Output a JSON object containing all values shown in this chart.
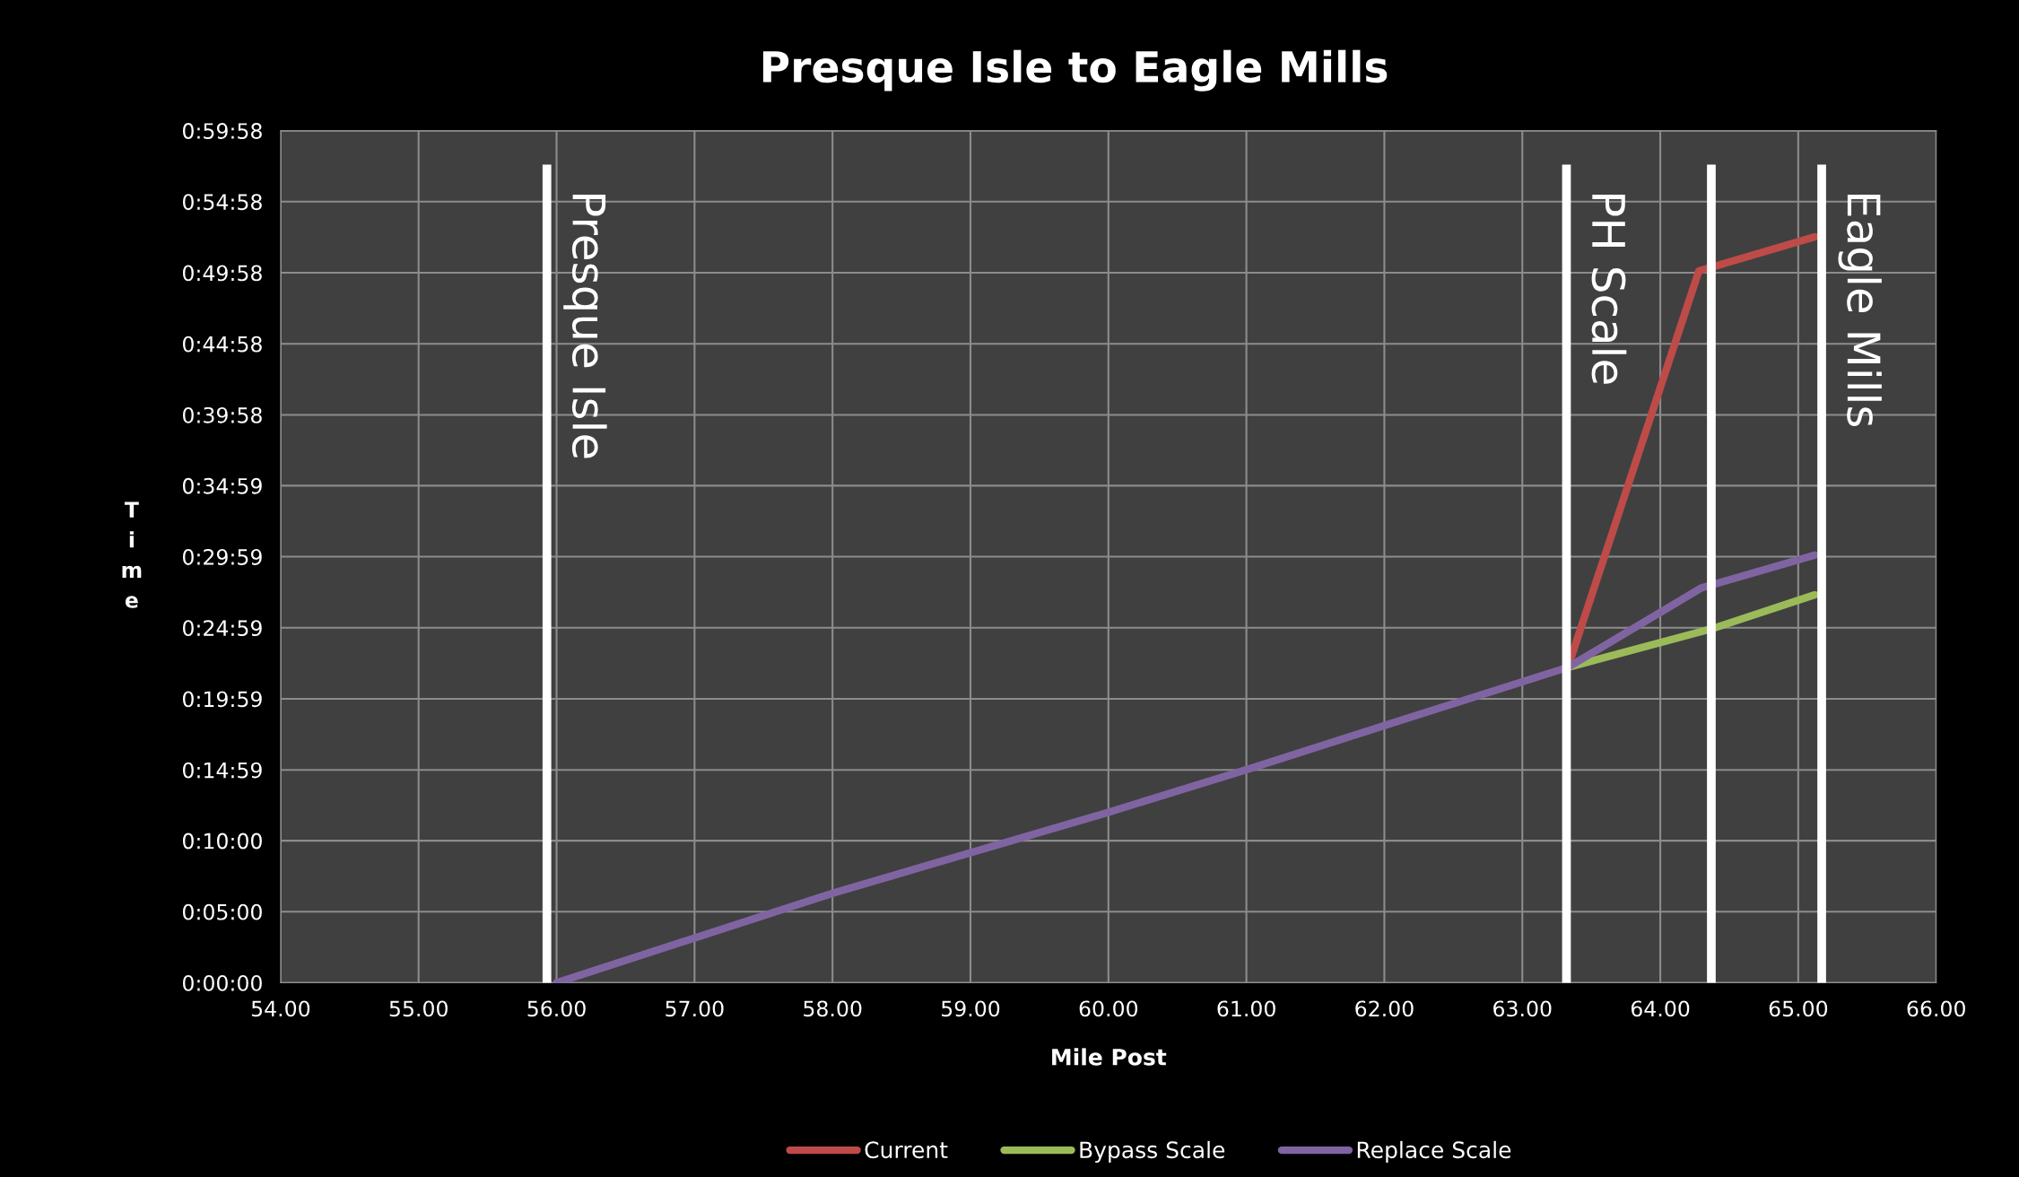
{
  "chart_data": {
    "type": "line",
    "title": "Presque Isle to Eagle Mills",
    "xlabel": "Mile Post",
    "ylabel": "Time",
    "xlim": [
      54,
      66
    ],
    "xticks": [
      {
        "value": 54,
        "label": "54.00"
      },
      {
        "value": 55,
        "label": "55.00"
      },
      {
        "value": 56,
        "label": "56.00"
      },
      {
        "value": 57,
        "label": "57.00"
      },
      {
        "value": 58,
        "label": "58.00"
      },
      {
        "value": 59,
        "label": "59.00"
      },
      {
        "value": 60,
        "label": "60.00"
      },
      {
        "value": 61,
        "label": "61.00"
      },
      {
        "value": 62,
        "label": "62.00"
      },
      {
        "value": 63,
        "label": "63.00"
      },
      {
        "value": 64,
        "label": "64.00"
      },
      {
        "value": 65,
        "label": "65.00"
      },
      {
        "value": 66,
        "label": "66.00"
      }
    ],
    "ylim": [
      0,
      59.9667
    ],
    "yticks": [
      {
        "value": 0,
        "label": "0:00:00"
      },
      {
        "value": 5,
        "label": "0:05:00"
      },
      {
        "value": 10,
        "label": "0:10:00"
      },
      {
        "value": 14.9833,
        "label": "0:14:59"
      },
      {
        "value": 19.9833,
        "label": "0:19:59"
      },
      {
        "value": 24.9833,
        "label": "0:24:59"
      },
      {
        "value": 29.9833,
        "label": "0:29:59"
      },
      {
        "value": 34.9833,
        "label": "0:34:59"
      },
      {
        "value": 39.9667,
        "label": "0:39:58"
      },
      {
        "value": 44.9667,
        "label": "0:44:58"
      },
      {
        "value": 49.9667,
        "label": "0:49:58"
      },
      {
        "value": 54.9667,
        "label": "0:54:58"
      },
      {
        "value": 59.9667,
        "label": "0:59:58"
      }
    ],
    "grid": true,
    "legend": "bottom",
    "marker": "none",
    "line_style": "solid",
    "series": [
      {
        "name": "Current",
        "color": "#be4b48",
        "x": [
          63.33,
          64.28,
          65.12
        ],
        "values": [
          22.2,
          50.1,
          52.5
        ]
      },
      {
        "name": "Bypass Scale",
        "color": "#9bbb59",
        "x": [
          63.33,
          64.37,
          65.12
        ],
        "values": [
          22.2,
          24.9,
          27.3
        ]
      },
      {
        "name": "Replace Scale",
        "color": "#8064a2",
        "x": [
          56.0,
          58.0,
          60.0,
          61.0,
          62.0,
          63.33,
          64.3,
          65.12
        ],
        "values": [
          0,
          6.3,
          12.0,
          15.0,
          18.1,
          22.2,
          27.8,
          30.1
        ]
      }
    ],
    "ref_lines": [
      {
        "axis": "x",
        "value": 55.93,
        "label": "Presque Isle",
        "color": "#ffffff"
      },
      {
        "axis": "x",
        "value": 63.32,
        "label": "PH Scale",
        "color": "#ffffff"
      },
      {
        "axis": "x",
        "value": 64.37,
        "label": null,
        "color": "#ffffff"
      },
      {
        "axis": "x",
        "value": 65.17,
        "label": "Eagle Mills",
        "color": "#ffffff"
      }
    ]
  }
}
